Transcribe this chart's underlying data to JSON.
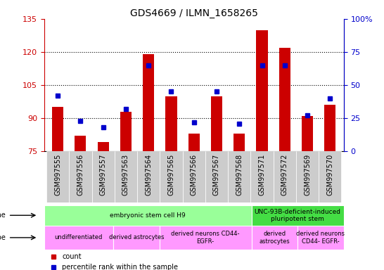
{
  "title": "GDS4669 / ILMN_1658265",
  "samples": [
    "GSM997555",
    "GSM997556",
    "GSM997557",
    "GSM997563",
    "GSM997564",
    "GSM997565",
    "GSM997566",
    "GSM997567",
    "GSM997568",
    "GSM997571",
    "GSM997572",
    "GSM997569",
    "GSM997570"
  ],
  "count_values": [
    95,
    82,
    79,
    93,
    119,
    100,
    83,
    100,
    83,
    130,
    122,
    91,
    96
  ],
  "percentile_values": [
    42,
    23,
    18,
    32,
    65,
    45,
    22,
    45,
    21,
    65,
    65,
    27,
    40
  ],
  "ylim_left": [
    75,
    135
  ],
  "ylim_right": [
    0,
    100
  ],
  "yticks_left": [
    75,
    90,
    105,
    120,
    135
  ],
  "yticks_right": [
    0,
    25,
    50,
    75,
    100
  ],
  "bar_color": "#cc0000",
  "dot_color": "#0000cc",
  "bar_bottom": 75,
  "cell_line_groups": [
    {
      "label": "embryonic stem cell H9",
      "start": 0,
      "end": 9,
      "color": "#99ff99"
    },
    {
      "label": "UNC-93B-deficient-induced\npluripotent stem",
      "start": 9,
      "end": 13,
      "color": "#44dd44"
    }
  ],
  "cell_type_groups": [
    {
      "label": "undifferentiated",
      "start": 0,
      "end": 3,
      "color": "#ff99ff"
    },
    {
      "label": "derived astrocytes",
      "start": 3,
      "end": 5,
      "color": "#ff99ff"
    },
    {
      "label": "derived neurons CD44-\nEGFR-",
      "start": 5,
      "end": 9,
      "color": "#ff99ff"
    },
    {
      "label": "derived\nastrocytes",
      "start": 9,
      "end": 11,
      "color": "#ff99ff"
    },
    {
      "label": "derived neurons\nCD44- EGFR-",
      "start": 11,
      "end": 13,
      "color": "#ff99ff"
    }
  ],
  "tick_label_color_left": "#cc0000",
  "tick_label_color_right": "#0000cc",
  "grid_color": "#000000",
  "xtick_bg_color": "#cccccc"
}
